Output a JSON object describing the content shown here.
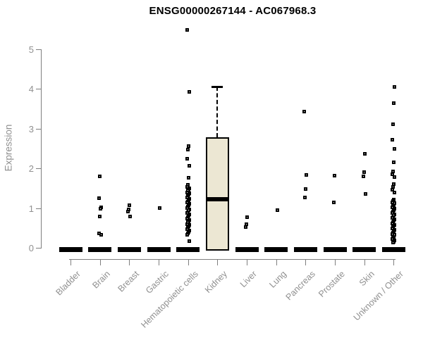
{
  "title": "ENSG00000267144 - AC067968.3",
  "chart_data": {
    "type": "boxplot",
    "title": "ENSG00000267144 - AC067968.3",
    "xlabel": "",
    "ylabel": "Expression",
    "ylim": [
      0,
      5
    ],
    "yticks": [
      "0",
      "1",
      "2",
      "3",
      "4",
      "5"
    ],
    "grid": false,
    "legend": false,
    "box_fill_color": "#ece7d3",
    "box_line_color": "#000000",
    "axis_line_color": "#7f7f7f",
    "axis_text_color": "#909090",
    "categories": [
      "Bladder",
      "Brain",
      "Breast",
      "Gastric",
      "Hematopoietic cells",
      "Kidney",
      "Liver",
      "Lung",
      "Pancreas",
      "Prostate",
      "Skin",
      "Unknown / Other"
    ],
    "series": [
      {
        "category": "Bladder",
        "box": {
          "q1": 0,
          "median": 0,
          "q3": 0,
          "whisker_low": 0,
          "whisker_high": 0
        },
        "outliers": []
      },
      {
        "category": "Brain",
        "box": {
          "q1": 0,
          "median": 0,
          "q3": 0,
          "whisker_low": 0,
          "whisker_high": 0
        },
        "outliers": [
          1.8,
          1.25,
          1.02,
          0.98,
          0.79,
          0.37,
          0.33
        ]
      },
      {
        "category": "Breast",
        "box": {
          "q1": 0,
          "median": 0,
          "q3": 0,
          "whisker_low": 0,
          "whisker_high": 0
        },
        "outliers": [
          1.08,
          0.97,
          0.92,
          0.79
        ]
      },
      {
        "category": "Gastric",
        "box": {
          "q1": 0,
          "median": 0,
          "q3": 0,
          "whisker_low": 0,
          "whisker_high": 0
        },
        "outliers": [
          1.0
        ]
      },
      {
        "category": "Hematopoietic cells",
        "box": {
          "q1": 0,
          "median": 0,
          "q3": 0,
          "whisker_low": 0,
          "whisker_high": 0
        },
        "outliers": [
          5.49,
          3.92,
          2.57,
          2.48,
          2.24,
          2.07,
          1.77,
          1.58,
          1.54,
          1.5,
          1.47,
          1.44,
          1.4,
          1.37,
          1.34,
          1.3,
          1.27,
          1.24,
          1.2,
          1.17,
          1.14,
          1.1,
          1.07,
          1.04,
          1.0,
          0.97,
          0.94,
          0.9,
          0.87,
          0.84,
          0.8,
          0.77,
          0.74,
          0.7,
          0.67,
          0.64,
          0.6,
          0.57,
          0.54,
          0.5,
          0.47,
          0.44,
          0.4,
          0.37,
          0.33,
          0.17
        ]
      },
      {
        "category": "Kidney",
        "box": {
          "q1": 0,
          "median": 1.22,
          "q3": 2.78,
          "whisker_low": 0,
          "whisker_high": 4.06
        },
        "outliers": []
      },
      {
        "category": "Liver",
        "box": {
          "q1": 0,
          "median": 0,
          "q3": 0,
          "whisker_low": 0,
          "whisker_high": 0
        },
        "outliers": [
          0.78,
          0.6,
          0.52
        ]
      },
      {
        "category": "Lung",
        "box": {
          "q1": 0,
          "median": 0,
          "q3": 0,
          "whisker_low": 0,
          "whisker_high": 0
        },
        "outliers": [
          0.95
        ]
      },
      {
        "category": "Pancreas",
        "box": {
          "q1": 0,
          "median": 0,
          "q3": 0,
          "whisker_low": 0,
          "whisker_high": 0
        },
        "outliers": [
          3.43,
          1.83,
          1.48,
          1.27
        ]
      },
      {
        "category": "Prostate",
        "box": {
          "q1": 0,
          "median": 0,
          "q3": 0,
          "whisker_low": 0,
          "whisker_high": 0
        },
        "outliers": [
          1.82,
          1.15
        ]
      },
      {
        "category": "Skin",
        "box": {
          "q1": 0,
          "median": 0,
          "q3": 0,
          "whisker_low": 0,
          "whisker_high": 0
        },
        "outliers": [
          2.36,
          1.9,
          1.8,
          1.36
        ]
      },
      {
        "category": "Unknown / Other",
        "box": {
          "q1": 0,
          "median": 0,
          "q3": 0,
          "whisker_low": 0,
          "whisker_high": 0
        },
        "outliers": [
          4.06,
          3.64,
          3.11,
          2.72,
          2.5,
          2.16,
          1.92,
          1.86,
          1.79,
          1.61,
          1.54,
          1.47,
          1.4,
          1.22,
          1.18,
          1.15,
          1.12,
          1.08,
          1.05,
          1.02,
          0.98,
          0.95,
          0.92,
          0.88,
          0.85,
          0.82,
          0.78,
          0.75,
          0.72,
          0.68,
          0.65,
          0.62,
          0.58,
          0.55,
          0.52,
          0.48,
          0.45,
          0.42,
          0.38,
          0.35,
          0.32,
          0.28,
          0.25,
          0.22,
          0.18,
          0.15,
          0.13
        ]
      }
    ]
  }
}
